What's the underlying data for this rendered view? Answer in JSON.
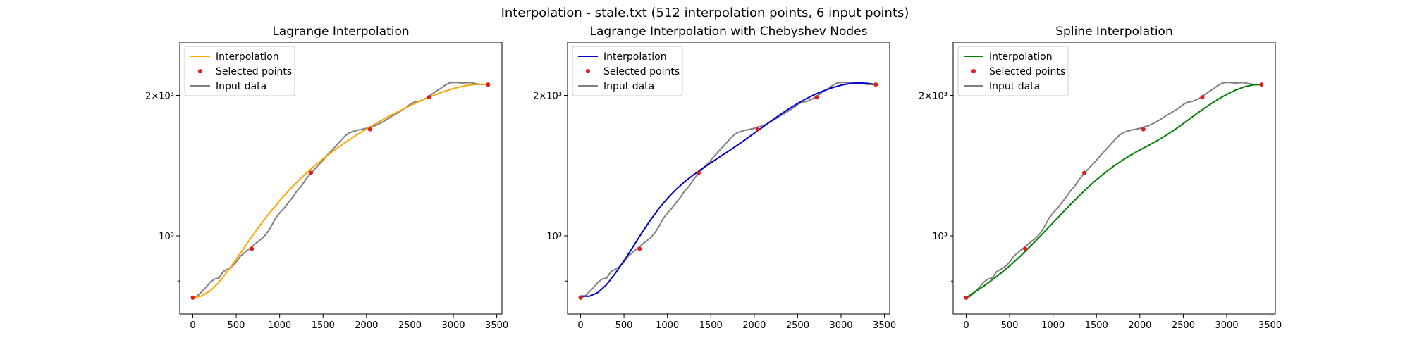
{
  "figure": {
    "title": "Interpolation - stale.txt (512 interpolation points, 6 input points)"
  },
  "chart_data": [
    {
      "type": "line",
      "title": "Lagrange Interpolation",
      "xlim": [
        -150,
        3560
      ],
      "ylim": [
        680,
        2600
      ],
      "yscale": "log",
      "x_ticks": [
        0,
        500,
        1000,
        1500,
        2000,
        2500,
        3000,
        3500
      ],
      "x_tick_labels": [
        "0",
        "500",
        "1000",
        "1500",
        "2000",
        "2500",
        "3000",
        "3500"
      ],
      "y_ticks": [
        1000,
        2000
      ],
      "y_tick_labels": [
        "10³",
        "2×10³"
      ],
      "y_minor_ticks": [
        800
      ],
      "grid": false,
      "legend": "top-left",
      "series": [
        {
          "name": "Interpolation",
          "kind": "line",
          "color": "#ffa500",
          "x": [
            0,
            100,
            200,
            300,
            400,
            500,
            600,
            700,
            800,
            900,
            1000,
            1100,
            1200,
            1300,
            1400,
            1500,
            1600,
            1700,
            1800,
            1900,
            2000,
            2100,
            2200,
            2300,
            2400,
            2500,
            2600,
            2700,
            2800,
            2900,
            3000,
            3100,
            3200,
            3300,
            3400
          ],
          "y": [
            737,
            743,
            762,
            795,
            839,
            891,
            948,
            1008,
            1069,
            1129,
            1189,
            1248,
            1304,
            1359,
            1412,
            1463,
            1512,
            1560,
            1606,
            1651,
            1694,
            1737,
            1779,
            1820,
            1860,
            1900,
            1938,
            1975,
            2009,
            2041,
            2068,
            2091,
            2106,
            2113,
            2110
          ]
        },
        {
          "name": "Selected points",
          "kind": "scatter",
          "color": "#e41a1c",
          "x": [
            0,
            680,
            1360,
            2040,
            2720,
            3400
          ],
          "y": [
            737,
            938,
            1365,
            1692,
            1982,
            2110
          ]
        },
        {
          "name": "Input data",
          "kind": "line",
          "color": "#808080",
          "x": [
            0,
            50,
            100,
            150,
            200,
            250,
            300,
            350,
            400,
            450,
            500,
            550,
            600,
            650,
            700,
            750,
            800,
            850,
            900,
            950,
            1000,
            1050,
            1100,
            1150,
            1200,
            1250,
            1300,
            1350,
            1400,
            1450,
            1500,
            1550,
            1600,
            1650,
            1700,
            1750,
            1800,
            1850,
            1900,
            1950,
            2000,
            2050,
            2100,
            2150,
            2200,
            2250,
            2300,
            2350,
            2400,
            2450,
            2500,
            2550,
            2600,
            2650,
            2700,
            2750,
            2800,
            2850,
            2900,
            2950,
            3000,
            3050,
            3100,
            3150,
            3200,
            3250,
            3300,
            3350,
            3400
          ],
          "y": [
            737,
            742,
            758,
            775,
            795,
            808,
            812,
            838,
            848,
            860,
            878,
            905,
            922,
            938,
            955,
            972,
            988,
            1012,
            1045,
            1088,
            1120,
            1145,
            1178,
            1210,
            1248,
            1278,
            1320,
            1355,
            1388,
            1420,
            1452,
            1490,
            1525,
            1560,
            1598,
            1635,
            1662,
            1675,
            1685,
            1692,
            1700,
            1712,
            1722,
            1740,
            1760,
            1782,
            1808,
            1830,
            1855,
            1880,
            1912,
            1935,
            1940,
            1958,
            1978,
            2010,
            2040,
            2068,
            2100,
            2125,
            2132,
            2130,
            2125,
            2128,
            2130,
            2120,
            2112,
            2112,
            2110
          ]
        }
      ]
    },
    {
      "type": "line",
      "title": "Lagrange Interpolation with Chebyshev Nodes",
      "xlim": [
        -150,
        3560
      ],
      "ylim": [
        680,
        2600
      ],
      "yscale": "log",
      "x_ticks": [
        0,
        500,
        1000,
        1500,
        2000,
        2500,
        3000,
        3500
      ],
      "x_tick_labels": [
        "0",
        "500",
        "1000",
        "1500",
        "2000",
        "2500",
        "3000",
        "3500"
      ],
      "y_ticks": [
        1000,
        2000
      ],
      "y_tick_labels": [
        "10³",
        "2×10³"
      ],
      "y_minor_ticks": [
        800
      ],
      "grid": false,
      "legend": "top-left",
      "series": [
        {
          "name": "Interpolation",
          "kind": "line",
          "color": "#0000cd",
          "x": [
            0,
            100,
            200,
            300,
            400,
            500,
            600,
            700,
            800,
            900,
            1000,
            1100,
            1200,
            1300,
            1400,
            1500,
            1600,
            1700,
            1800,
            1900,
            2000,
            2100,
            2200,
            2300,
            2400,
            2500,
            2600,
            2700,
            2800,
            2900,
            3000,
            3100,
            3200,
            3300,
            3400
          ],
          "y": [
            743,
            742,
            756,
            786,
            831,
            884,
            945,
            1011,
            1078,
            1143,
            1203,
            1258,
            1307,
            1351,
            1393,
            1434,
            1475,
            1517,
            1562,
            1609,
            1660,
            1712,
            1766,
            1820,
            1872,
            1922,
            1968,
            2010,
            2046,
            2078,
            2103,
            2120,
            2127,
            2123,
            2110
          ]
        },
        {
          "name": "Selected points",
          "kind": "scatter",
          "color": "#e41a1c",
          "x": [
            0,
            680,
            1360,
            2040,
            2720,
            3400
          ],
          "y": [
            737,
            938,
            1365,
            1692,
            1982,
            2110
          ]
        },
        {
          "name": "Input data",
          "kind": "line",
          "color": "#808080",
          "x": [
            0,
            50,
            100,
            150,
            200,
            250,
            300,
            350,
            400,
            450,
            500,
            550,
            600,
            650,
            700,
            750,
            800,
            850,
            900,
            950,
            1000,
            1050,
            1100,
            1150,
            1200,
            1250,
            1300,
            1350,
            1400,
            1450,
            1500,
            1550,
            1600,
            1650,
            1700,
            1750,
            1800,
            1850,
            1900,
            1950,
            2000,
            2050,
            2100,
            2150,
            2200,
            2250,
            2300,
            2350,
            2400,
            2450,
            2500,
            2550,
            2600,
            2650,
            2700,
            2750,
            2800,
            2850,
            2900,
            2950,
            3000,
            3050,
            3100,
            3150,
            3200,
            3250,
            3300,
            3350,
            3400
          ],
          "y": [
            737,
            742,
            758,
            775,
            795,
            808,
            812,
            838,
            848,
            860,
            878,
            905,
            922,
            938,
            955,
            972,
            988,
            1012,
            1045,
            1088,
            1120,
            1145,
            1178,
            1210,
            1248,
            1278,
            1320,
            1355,
            1388,
            1420,
            1452,
            1490,
            1525,
            1560,
            1598,
            1635,
            1662,
            1675,
            1685,
            1692,
            1700,
            1712,
            1722,
            1740,
            1760,
            1782,
            1808,
            1830,
            1855,
            1880,
            1912,
            1935,
            1940,
            1958,
            1978,
            2010,
            2040,
            2068,
            2100,
            2125,
            2132,
            2130,
            2125,
            2128,
            2130,
            2120,
            2112,
            2112,
            2110
          ]
        }
      ]
    },
    {
      "type": "line",
      "title": "Spline Interpolation",
      "xlim": [
        -150,
        3560
      ],
      "ylim": [
        680,
        2600
      ],
      "yscale": "log",
      "x_ticks": [
        0,
        500,
        1000,
        1500,
        2000,
        2500,
        3000,
        3500
      ],
      "x_tick_labels": [
        "0",
        "500",
        "1000",
        "1500",
        "2000",
        "2500",
        "3000",
        "3500"
      ],
      "y_ticks": [
        1000,
        2000
      ],
      "y_tick_labels": [
        "10³",
        "2×10³"
      ],
      "y_minor_ticks": [
        800
      ],
      "grid": false,
      "legend": "top-left",
      "series": [
        {
          "name": "Interpolation",
          "kind": "line",
          "color": "#008000",
          "x": [
            0,
            100,
            200,
            300,
            400,
            500,
            600,
            700,
            800,
            900,
            1000,
            1100,
            1200,
            1300,
            1400,
            1500,
            1600,
            1700,
            1800,
            1900,
            2000,
            2100,
            2200,
            2300,
            2400,
            2500,
            2600,
            2700,
            2800,
            2900,
            3000,
            3100,
            3200,
            3300,
            3400
          ],
          "y": [
            737,
            758,
            780,
            805,
            832,
            862,
            896,
            934,
            975,
            1020,
            1067,
            1116,
            1167,
            1218,
            1269,
            1319,
            1366,
            1411,
            1453,
            1492,
            1528,
            1563,
            1600,
            1641,
            1688,
            1740,
            1796,
            1853,
            1909,
            1962,
            2010,
            2052,
            2085,
            2106,
            2110
          ]
        },
        {
          "name": "Selected points",
          "kind": "scatter",
          "color": "#e41a1c",
          "x": [
            0,
            680,
            1360,
            2040,
            2720,
            3400
          ],
          "y": [
            737,
            938,
            1365,
            1692,
            1982,
            2110
          ]
        },
        {
          "name": "Input data",
          "kind": "line",
          "color": "#808080",
          "x": [
            0,
            50,
            100,
            150,
            200,
            250,
            300,
            350,
            400,
            450,
            500,
            550,
            600,
            650,
            700,
            750,
            800,
            850,
            900,
            950,
            1000,
            1050,
            1100,
            1150,
            1200,
            1250,
            1300,
            1350,
            1400,
            1450,
            1500,
            1550,
            1600,
            1650,
            1700,
            1750,
            1800,
            1850,
            1900,
            1950,
            2000,
            2050,
            2100,
            2150,
            2200,
            2250,
            2300,
            2350,
            2400,
            2450,
            2500,
            2550,
            2600,
            2650,
            2700,
            2750,
            2800,
            2850,
            2900,
            2950,
            3000,
            3050,
            3100,
            3150,
            3200,
            3250,
            3300,
            3350,
            3400
          ],
          "y": [
            737,
            742,
            758,
            775,
            795,
            808,
            812,
            838,
            848,
            860,
            878,
            905,
            922,
            938,
            955,
            972,
            988,
            1012,
            1045,
            1088,
            1120,
            1145,
            1178,
            1210,
            1248,
            1278,
            1320,
            1355,
            1388,
            1420,
            1452,
            1490,
            1525,
            1560,
            1598,
            1635,
            1662,
            1675,
            1685,
            1692,
            1700,
            1712,
            1722,
            1740,
            1760,
            1782,
            1808,
            1830,
            1855,
            1880,
            1912,
            1935,
            1940,
            1958,
            1978,
            2010,
            2040,
            2068,
            2100,
            2125,
            2132,
            2130,
            2125,
            2128,
            2130,
            2120,
            2112,
            2112,
            2110
          ]
        }
      ]
    }
  ]
}
